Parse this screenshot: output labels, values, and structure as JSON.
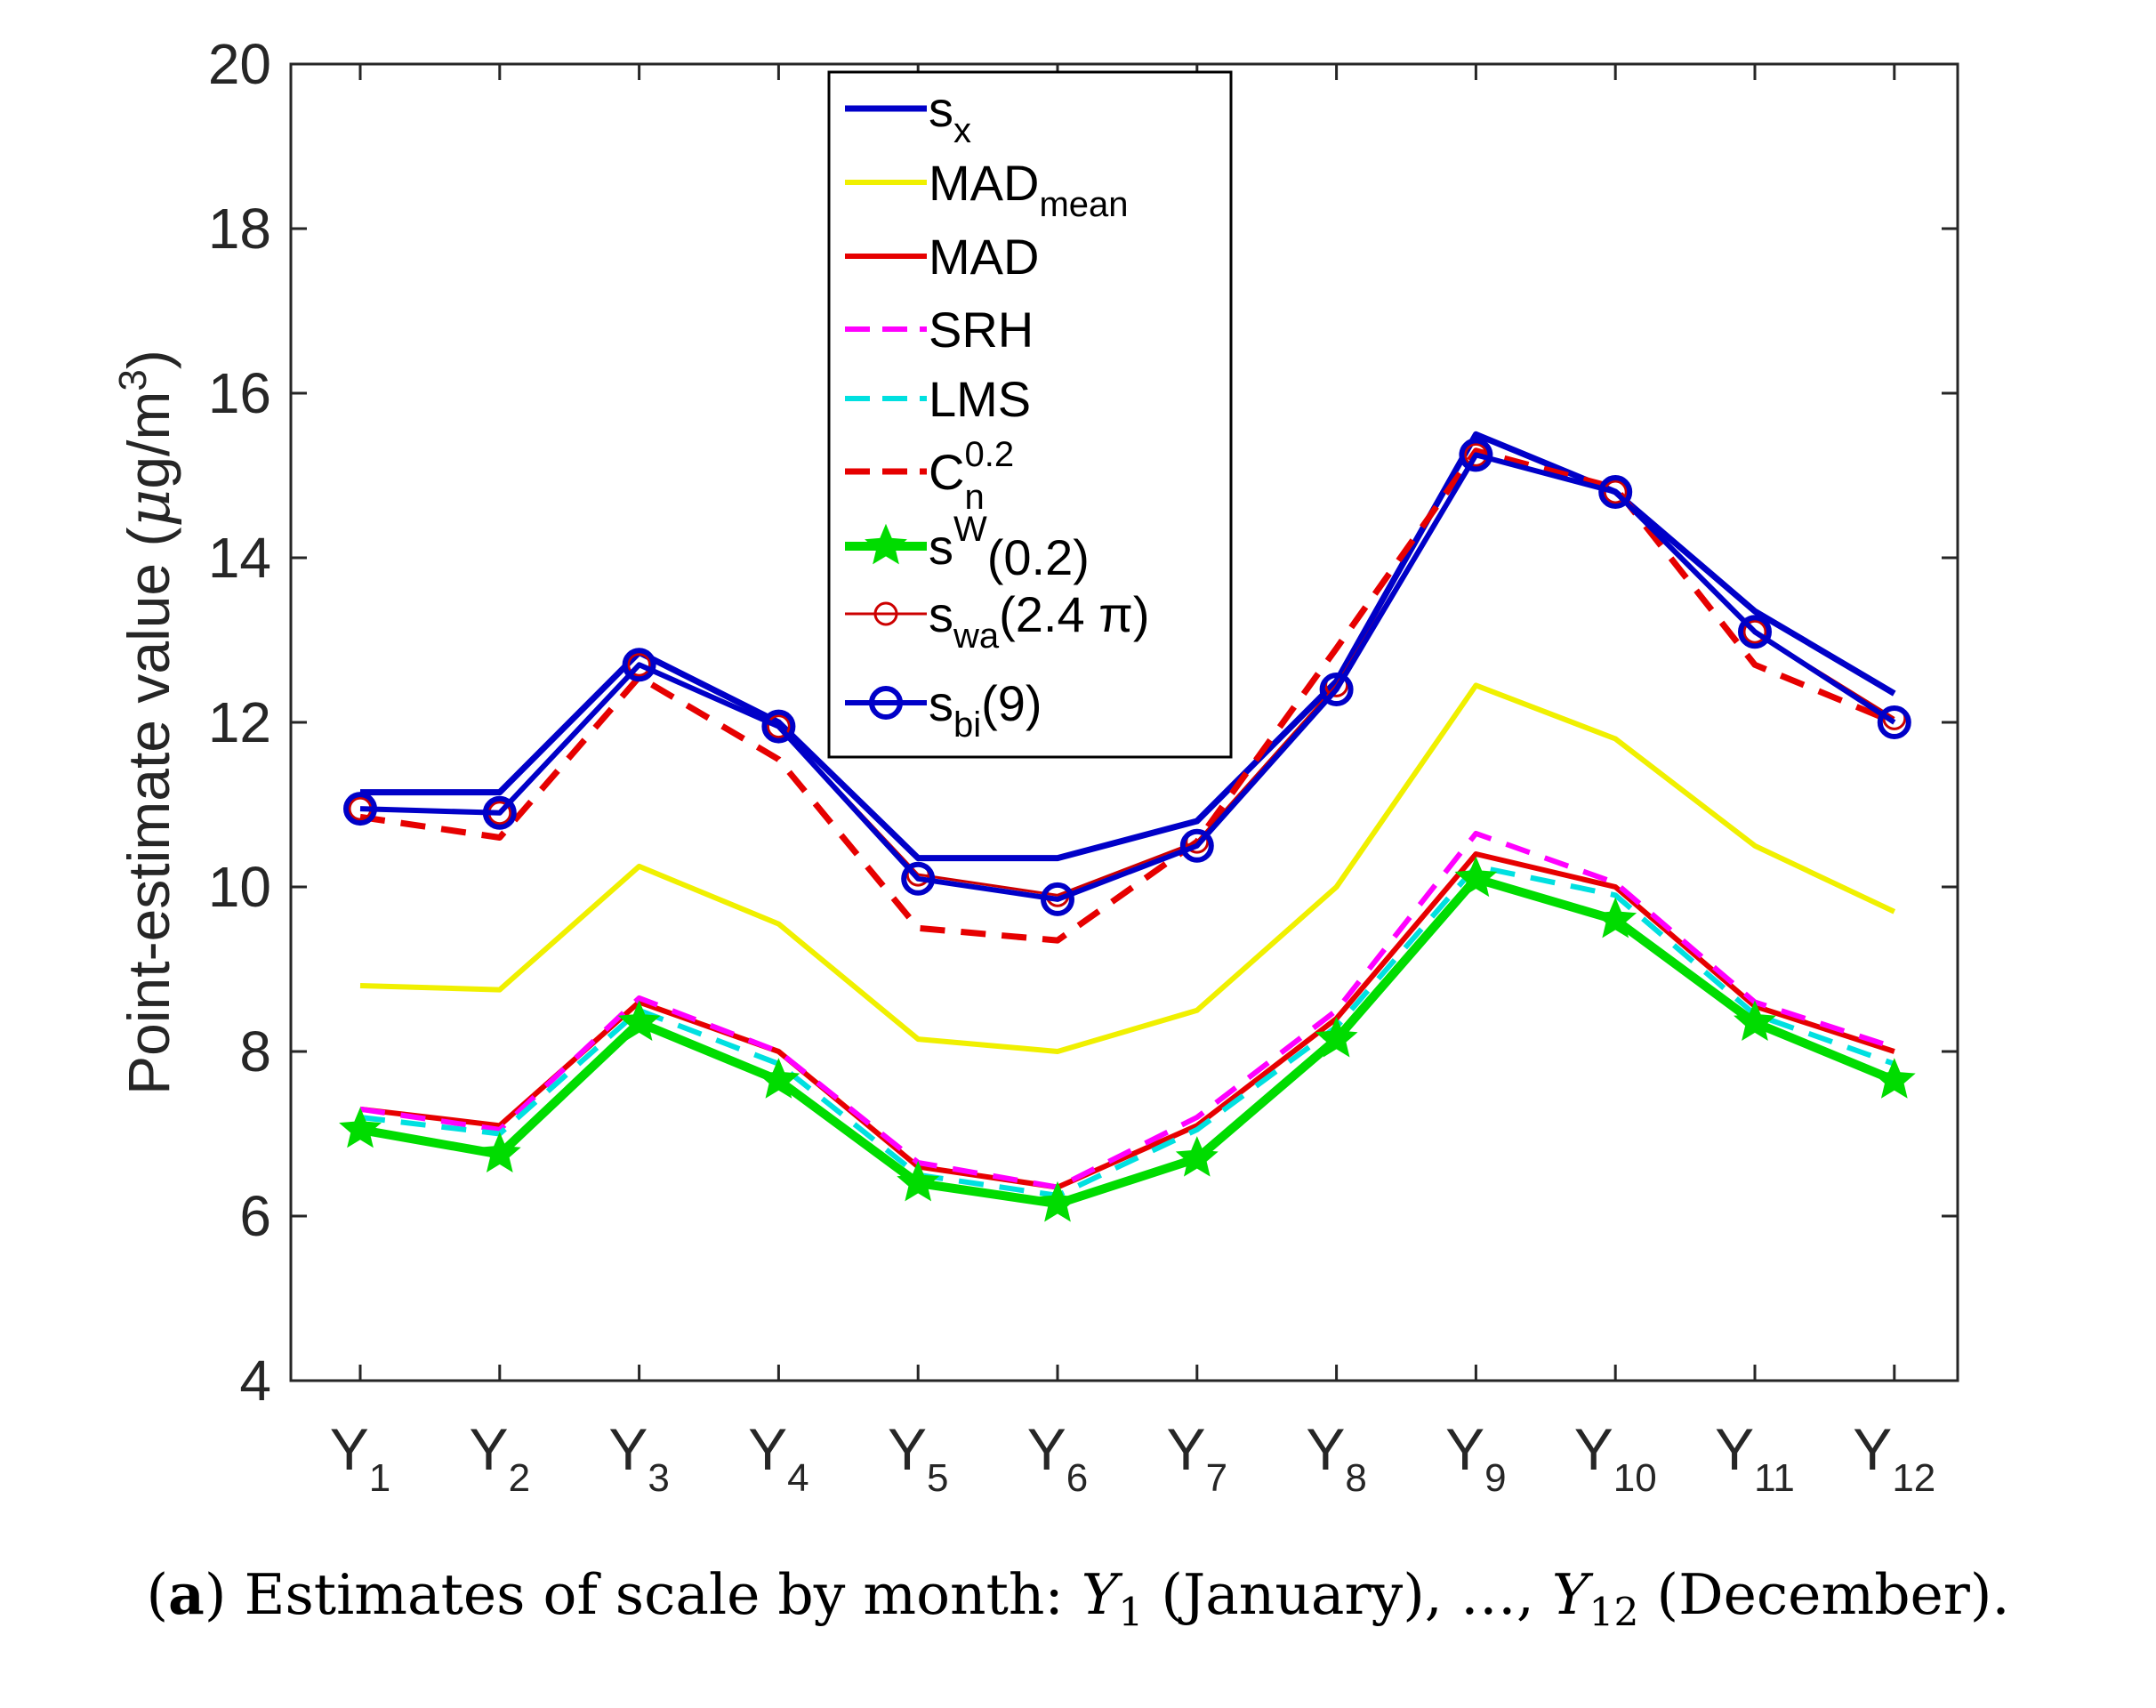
{
  "chart_data": {
    "type": "line",
    "ylabel_main": "Point-estimate value (",
    "ylabel_mu": "μ",
    "ylabel_unit": "g/m",
    "ylabel_exp": "3",
    "ylabel_close": ")",
    "ylim": [
      4,
      20
    ],
    "yticks": [
      4,
      6,
      8,
      10,
      12,
      14,
      16,
      18,
      20
    ],
    "categories": [
      {
        "base": "Y",
        "sub": "1"
      },
      {
        "base": "Y",
        "sub": "2"
      },
      {
        "base": "Y",
        "sub": "3"
      },
      {
        "base": "Y",
        "sub": "4"
      },
      {
        "base": "Y",
        "sub": "5"
      },
      {
        "base": "Y",
        "sub": "6"
      },
      {
        "base": "Y",
        "sub": "7"
      },
      {
        "base": "Y",
        "sub": "8"
      },
      {
        "base": "Y",
        "sub": "9"
      },
      {
        "base": "Y",
        "sub": "10"
      },
      {
        "base": "Y",
        "sub": "11"
      },
      {
        "base": "Y",
        "sub": "12"
      }
    ],
    "grid": false,
    "legend_position": "top-center",
    "series": [
      {
        "name": "s",
        "sub": "x",
        "color": "#0000c8",
        "dash": "",
        "width": 7,
        "marker": "none",
        "values": [
          11.15,
          11.15,
          12.85,
          12.0,
          10.35,
          10.35,
          10.8,
          12.5,
          15.5,
          14.8,
          13.35,
          12.35
        ]
      },
      {
        "name": "MAD",
        "sub": "mean",
        "color": "#f0f000",
        "dash": "",
        "width": 6,
        "marker": "none",
        "values": [
          8.8,
          8.75,
          10.25,
          9.55,
          8.15,
          8.0,
          8.5,
          10.0,
          12.45,
          11.8,
          10.5,
          9.7
        ]
      },
      {
        "name": "MAD",
        "color": "#e60000",
        "dash": "",
        "width": 6,
        "marker": "none",
        "values": [
          7.3,
          7.1,
          8.6,
          8.0,
          6.6,
          6.35,
          7.1,
          8.4,
          10.4,
          10.0,
          8.55,
          8.0
        ]
      },
      {
        "name": "SRH",
        "color": "#ff00ff",
        "dash": "28,18",
        "width": 6,
        "marker": "none",
        "values": [
          7.3,
          7.05,
          8.65,
          8.0,
          6.65,
          6.35,
          7.2,
          8.5,
          10.65,
          10.05,
          8.6,
          8.05
        ]
      },
      {
        "name": "LMS",
        "color": "#00e0e0",
        "dash": "28,18",
        "width": 6,
        "marker": "none",
        "values": [
          7.2,
          7.0,
          8.5,
          7.85,
          6.5,
          6.25,
          7.05,
          8.3,
          10.25,
          9.9,
          8.45,
          7.85
        ]
      },
      {
        "name": "C",
        "sub": "n",
        "sup": "0.2",
        "color": "#e60000",
        "dash": "28,18",
        "width": 7,
        "marker": "none",
        "values": [
          10.85,
          10.6,
          12.55,
          11.55,
          9.5,
          9.35,
          10.55,
          12.9,
          15.3,
          14.85,
          12.7,
          12.0
        ]
      },
      {
        "name": "s",
        "sup": "W",
        "suffix": "(0.2)",
        "color": "#00dc00",
        "dash": "",
        "width": 10,
        "marker": "star",
        "values": [
          7.05,
          6.75,
          8.35,
          7.65,
          6.4,
          6.15,
          6.7,
          8.15,
          10.1,
          9.6,
          8.35,
          7.65
        ]
      },
      {
        "name": "s",
        "sub": "wa",
        "suffix": "(2.4 π)",
        "color": "#cc0000",
        "dash": "",
        "width": 3,
        "marker": "circle-small",
        "values": [
          10.95,
          10.9,
          12.7,
          11.95,
          10.15,
          9.9,
          10.55,
          12.45,
          15.25,
          14.8,
          13.1,
          12.05
        ]
      },
      {
        "name": "s",
        "sub": "bi",
        "suffix": "(9)",
        "color": "#0000c8",
        "dash": "",
        "width": 6,
        "marker": "circle",
        "values": [
          10.95,
          10.9,
          12.7,
          11.95,
          10.1,
          9.85,
          10.5,
          12.4,
          15.25,
          14.8,
          13.1,
          12.0
        ]
      }
    ]
  },
  "caption": {
    "open": "(",
    "bold": "a",
    "text1": ") Estimates of scale by month:  ",
    "y": "Y",
    "sub1": "1",
    "text2": "  (January), …,  ",
    "sub12": "12",
    "text3": "  (December)."
  }
}
